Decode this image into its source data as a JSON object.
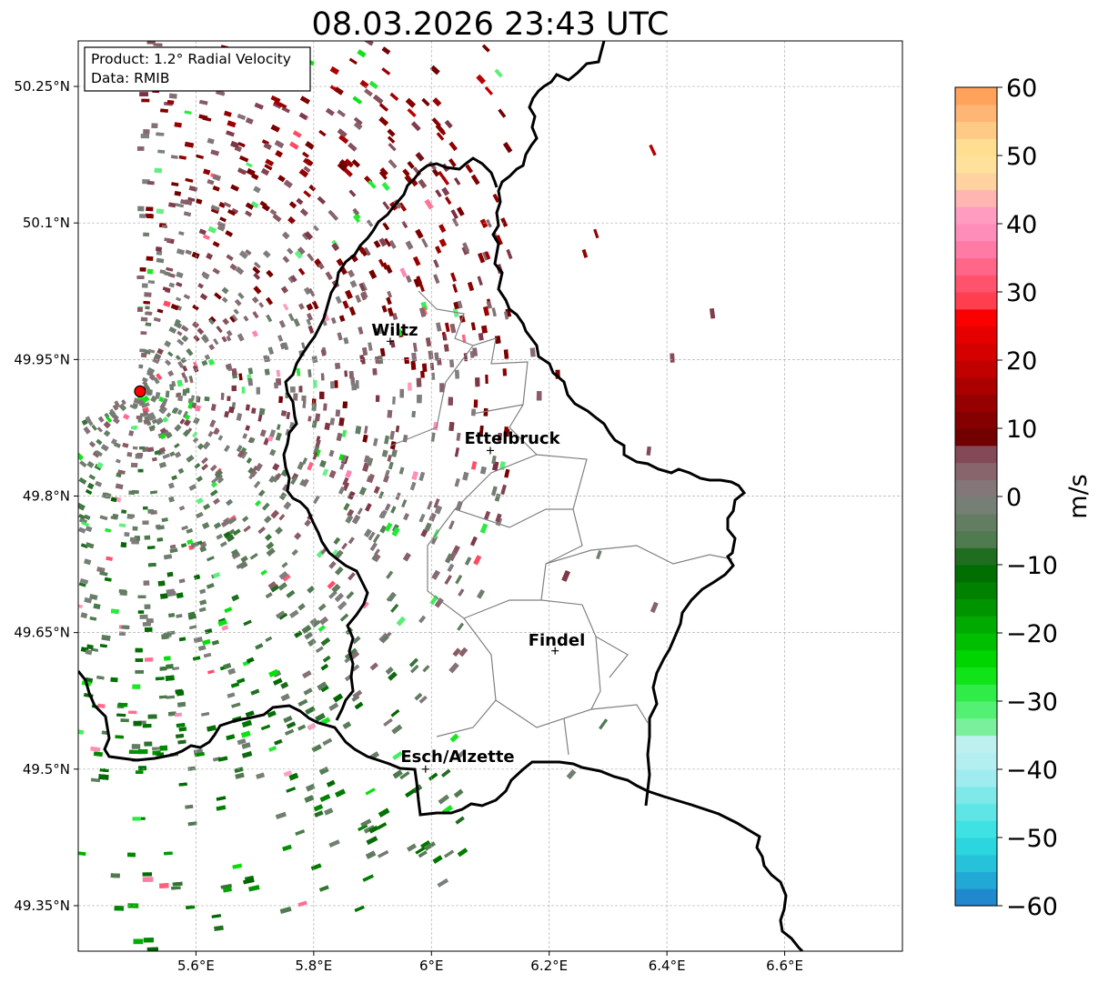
{
  "title": "08.03.2026 23:43 UTC",
  "info_box": {
    "product": "Product: 1.2° Radial Velocity",
    "source": "Data: RMIB"
  },
  "axes": {
    "lon_range": [
      5.4,
      6.8
    ],
    "lat_range": [
      49.3,
      50.3
    ],
    "x_ticks": [
      {
        "value": 5.6,
        "label": "5.6°E"
      },
      {
        "value": 5.8,
        "label": "5.8°E"
      },
      {
        "value": 6.0,
        "label": "6°E"
      },
      {
        "value": 6.2,
        "label": "6.2°E"
      },
      {
        "value": 6.4,
        "label": "6.4°E"
      },
      {
        "value": 6.6,
        "label": "6.6°E"
      }
    ],
    "y_ticks": [
      {
        "value": 50.25,
        "label": "50.25°N"
      },
      {
        "value": 50.1,
        "label": "50.1°N"
      },
      {
        "value": 49.95,
        "label": "49.95°N"
      },
      {
        "value": 49.8,
        "label": "49.8°N"
      },
      {
        "value": 49.65,
        "label": "49.65°N"
      },
      {
        "value": 49.5,
        "label": "49.5°N"
      },
      {
        "value": 49.35,
        "label": "49.35°N"
      }
    ]
  },
  "radar_site": {
    "lon": 5.505,
    "lat": 49.915,
    "color": "#ff0000"
  },
  "cities": [
    {
      "name": "Wiltz",
      "lon": 5.93,
      "lat": 49.97
    },
    {
      "name": "Ettelbruck",
      "lon": 6.1,
      "lat": 49.85
    },
    {
      "name": "Findel",
      "lon": 6.21,
      "lat": 49.63
    },
    {
      "name": "Esch/Alzette",
      "lon": 5.99,
      "lat": 49.5
    }
  ],
  "colorbar": {
    "label": "m/s",
    "min": -60,
    "max": 60,
    "ticks": [
      {
        "value": 60,
        "label": "60"
      },
      {
        "value": 50,
        "label": "50"
      },
      {
        "value": 40,
        "label": "40"
      },
      {
        "value": 30,
        "label": "30"
      },
      {
        "value": 20,
        "label": "20"
      },
      {
        "value": 10,
        "label": "10"
      },
      {
        "value": 0,
        "label": "0"
      },
      {
        "value": -10,
        "label": "−10"
      },
      {
        "value": -20,
        "label": "−20"
      },
      {
        "value": -30,
        "label": "−30"
      },
      {
        "value": -40,
        "label": "−40"
      },
      {
        "value": -50,
        "label": "−50"
      },
      {
        "value": -60,
        "label": "−60"
      }
    ],
    "stops": [
      {
        "value": -60,
        "color": "#1f78c8"
      },
      {
        "value": -55,
        "color": "#22b8d8"
      },
      {
        "value": -50,
        "color": "#2ee0e0"
      },
      {
        "value": -45,
        "color": "#6fe6e6"
      },
      {
        "value": -40,
        "color": "#aeeef2"
      },
      {
        "value": -36,
        "color": "#bff0f0"
      },
      {
        "value": -35,
        "color": "#8ef0b0"
      },
      {
        "value": -30,
        "color": "#40f060"
      },
      {
        "value": -25,
        "color": "#00e000"
      },
      {
        "value": -20,
        "color": "#00b400"
      },
      {
        "value": -15,
        "color": "#008a00"
      },
      {
        "value": -10,
        "color": "#006400"
      },
      {
        "value": -7,
        "color": "#4a7a4a"
      },
      {
        "value": 0,
        "color": "#808080"
      },
      {
        "value": 5,
        "color": "#8a5a66"
      },
      {
        "value": 8,
        "color": "#7a3040"
      },
      {
        "value": 8.1,
        "color": "#6e0000"
      },
      {
        "value": 15,
        "color": "#a00000"
      },
      {
        "value": 20,
        "color": "#cc0000"
      },
      {
        "value": 27,
        "color": "#ff0000"
      },
      {
        "value": 28,
        "color": "#ff3848"
      },
      {
        "value": 33,
        "color": "#ff6080"
      },
      {
        "value": 38,
        "color": "#ff88b8"
      },
      {
        "value": 42,
        "color": "#ffa0c0"
      },
      {
        "value": 46,
        "color": "#ffd0a0"
      },
      {
        "value": 50,
        "color": "#ffe898"
      },
      {
        "value": 55,
        "color": "#ffc080"
      },
      {
        "value": 60,
        "color": "#ff9850"
      }
    ]
  }
}
